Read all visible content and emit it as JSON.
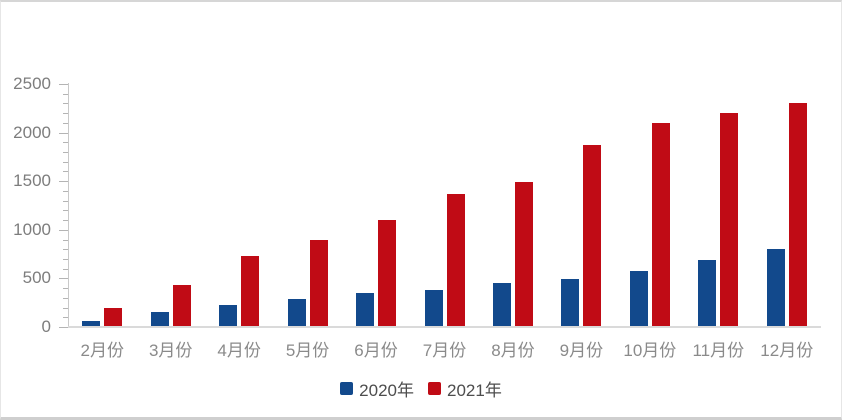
{
  "chart_data": {
    "type": "bar",
    "title": "",
    "xlabel": "",
    "ylabel": "",
    "categories": [
      "2月份",
      "3月份",
      "4月份",
      "5月份",
      "6月份",
      "7月份",
      "8月份",
      "9月份",
      "10月份",
      "11月份",
      "12月份"
    ],
    "series": [
      {
        "name": "2020年",
        "color": "#12498C",
        "values": [
          60,
          150,
          230,
          290,
          350,
          380,
          450,
          490,
          580,
          690,
          800
        ]
      },
      {
        "name": "2021年",
        "color": "#C00B15",
        "values": [
          200,
          430,
          730,
          900,
          1100,
          1370,
          1490,
          1870,
          2100,
          2200,
          2300
        ]
      }
    ],
    "ylim": [
      0,
      2500
    ],
    "y_ticks": [
      0,
      500,
      1000,
      1500,
      2000,
      2500
    ],
    "y_tick_labels": [
      "0",
      "500",
      "1000",
      "1500",
      "2000",
      "2500"
    ],
    "minor_tick_interval": 100,
    "grid": "off",
    "legend_position": "bottom-center"
  },
  "colors": {
    "bar_2020": "#12498C",
    "bar_2021": "#C00B15",
    "axis_line": "#C9C9C9",
    "baseline": "#DADADA",
    "tick": "#B4B4B4",
    "y_label_text": "#7D7D7D",
    "x_label_text": "#8A8A8A",
    "legend_text": "#4D4D4D",
    "card_background": "#FFFFFF",
    "card_border": "#D6D6D6"
  }
}
